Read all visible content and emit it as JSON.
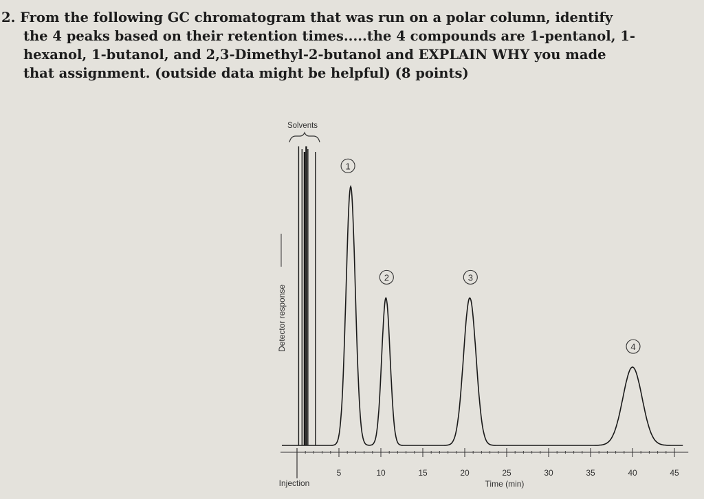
{
  "question": {
    "lines": [
      "2. From the following GC chromatogram that was run on a polar column, identify",
      "the 4 peaks based on their retention times.....the 4 compounds are 1-pentanol, 1-",
      "hexanol, 1-butanol, and 2,3-Dimethyl-2-butanol and EXPLAIN WHY you made",
      "that assignment.  (outside data might be helpful)  (8 points)"
    ]
  },
  "chart_data": {
    "type": "line",
    "title": "",
    "xlabel": "Time (min)",
    "ylabel": "Detector response",
    "xlim": [
      0,
      46
    ],
    "ylim": [
      0,
      1
    ],
    "x_ticks": [
      5,
      10,
      15,
      20,
      25,
      30,
      35,
      40,
      45
    ],
    "injection_label": "Injection",
    "solvents_label": "Solvents",
    "peaks": [
      {
        "label": "1",
        "retention_time": 6.4,
        "height": 0.86
      },
      {
        "label": "2",
        "retention_time": 10.6,
        "height": 0.49
      },
      {
        "label": "3",
        "retention_time": 20.6,
        "height": 0.49
      },
      {
        "label": "4",
        "retention_time": 40.0,
        "height": 0.26
      }
    ],
    "solvent_peaks": [
      0.2,
      0.6,
      0.9,
      1.1,
      1.3,
      2.2
    ]
  },
  "colors": {
    "ink": "#1a1a1a",
    "paper": "#e4e2dc"
  }
}
